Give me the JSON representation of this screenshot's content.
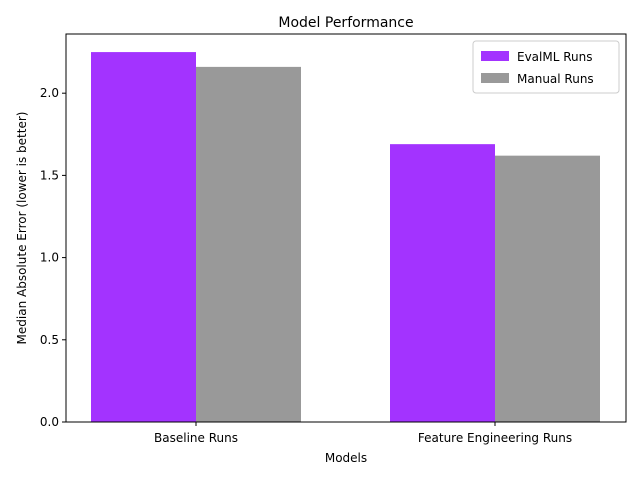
{
  "chart_data": {
    "type": "bar",
    "title": "Model Performance",
    "xlabel": "Models",
    "ylabel": "Median Absolute Error (lower is better)",
    "categories": [
      "Baseline Runs",
      "Feature Engineering Runs"
    ],
    "series": [
      {
        "name": "EvalML Runs",
        "color": "#a333ff",
        "values": [
          2.25,
          1.69
        ]
      },
      {
        "name": "Manual Runs",
        "color": "#999999",
        "values": [
          2.16,
          1.62
        ]
      }
    ],
    "ylim": [
      0,
      2.36
    ],
    "yticks": [
      0.0,
      0.5,
      1.0,
      1.5,
      2.0
    ],
    "ytick_labels": [
      "0.0",
      "0.5",
      "1.0",
      "1.5",
      "2.0"
    ],
    "grid": false,
    "legend_position": "top-right"
  }
}
